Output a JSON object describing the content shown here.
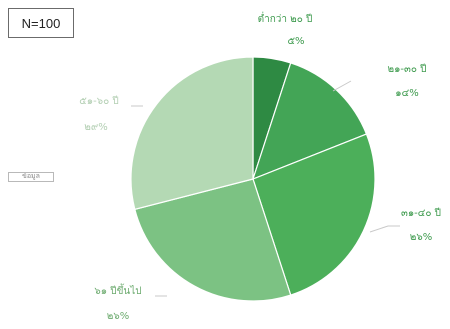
{
  "sample_label": "N=100",
  "side_tag": "ข้อมูล",
  "chart_data": {
    "type": "pie",
    "title": "",
    "legend": "none",
    "slices": [
      {
        "label": "ต่ำกว่า ๒๐ ปี",
        "value": 5,
        "value_label": "๕%",
        "color": "#2e8a43"
      },
      {
        "label": "๒๑-๓๐ ปี",
        "value": 14,
        "value_label": "๑๔%",
        "color": "#43a556"
      },
      {
        "label": "๓๑-๔๐ ปี",
        "value": 26,
        "value_label": "๒๖%",
        "color": "#4caf5a"
      },
      {
        "label": "๖๑ ปีขึ้นไป",
        "value": 26,
        "value_label": "๒๖%",
        "color": "#7cc283"
      },
      {
        "label": "๕๑-๖๐ ปี",
        "value": 29,
        "value_label": "๒๙%",
        "color": "#b4d9b4"
      }
    ]
  }
}
